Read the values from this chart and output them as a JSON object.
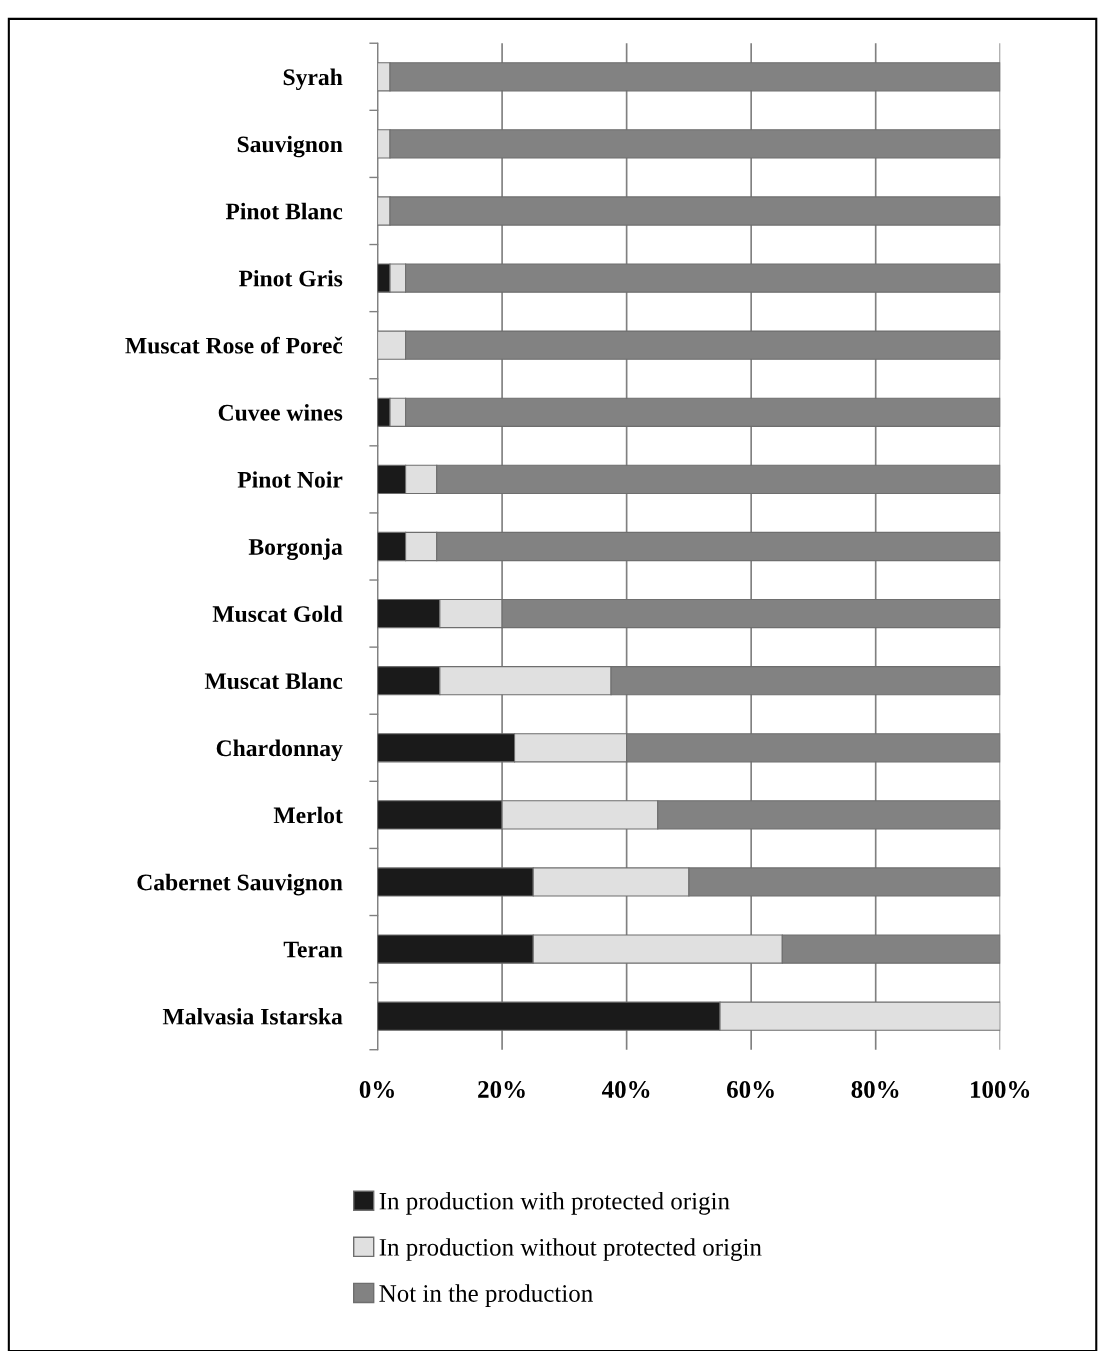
{
  "chart_data": {
    "type": "bar",
    "orientation": "horizontal",
    "stacked": true,
    "categories": [
      "Syrah",
      "Sauvignon",
      "Pinot Blanc",
      "Pinot Gris",
      "Muscat Rose of Poreč",
      "Cuvee wines",
      "Pinot Noir",
      "Borgonja",
      "Muscat Gold",
      "Muscat Blanc",
      "Chardonnay",
      "Merlot",
      "Cabernet Sauvignon",
      "Teran",
      "Malvasia Istarska"
    ],
    "series": [
      {
        "name": "In production with protected origin",
        "color": "#1a1a1a",
        "values": [
          0,
          0,
          0,
          2,
          0,
          2,
          4.5,
          4.5,
          10,
          10,
          22,
          20,
          25,
          25,
          55
        ]
      },
      {
        "name": "In production without protected origin",
        "color": "#e0e0e0",
        "values": [
          2,
          2,
          2,
          2.5,
          4.5,
          2.5,
          5,
          5,
          10,
          27.5,
          18,
          25,
          25,
          40,
          45
        ]
      },
      {
        "name": "Not in the production",
        "color": "#828282",
        "values": [
          98,
          98,
          98,
          95.5,
          95.5,
          95.5,
          90.5,
          90.5,
          80,
          62.5,
          60,
          55,
          50,
          35,
          0
        ]
      }
    ],
    "xlim": [
      0,
      100
    ],
    "xticks": [
      {
        "value": 0,
        "label": "0%"
      },
      {
        "value": 20,
        "label": "20%"
      },
      {
        "value": 40,
        "label": "40%"
      },
      {
        "value": 60,
        "label": "60%"
      },
      {
        "value": 80,
        "label": "80%"
      },
      {
        "value": 100,
        "label": "100%"
      }
    ],
    "grid": "x",
    "legend": "bottom"
  }
}
